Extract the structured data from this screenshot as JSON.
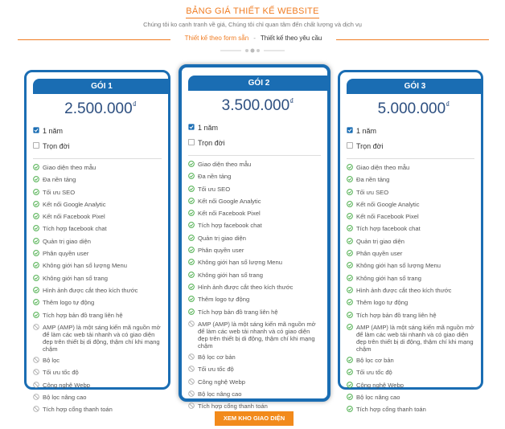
{
  "header": {
    "title": "BẢNG GIÁ THIẾT KẾ WEBSITE",
    "subtitle": "Chúng tôi ko cạnh tranh về giá, Chúng tôi chỉ quan tâm đến chất lượng và dịch vụ",
    "tabs": [
      "Thiết kế theo form sẵn",
      "Thiết kế theo yêu cầu"
    ]
  },
  "plans": [
    {
      "name": "GÓI 1",
      "price": "2.500.000",
      "currency": "₫",
      "options": [
        {
          "label": "1 năm",
          "checked": true
        },
        {
          "label": "Trọn đời",
          "checked": false
        }
      ],
      "features": [
        {
          "text": "Giao diện theo mẫu",
          "included": true
        },
        {
          "text": "Đa nền tảng",
          "included": true
        },
        {
          "text": "Tối ưu SEO",
          "included": true
        },
        {
          "text": "Kết nối Google Analytic",
          "included": true
        },
        {
          "text": "Kết nối Facebook Pixel",
          "included": true
        },
        {
          "text": "Tích hợp facebook chat",
          "included": true
        },
        {
          "text": "Quản trị giao diện",
          "included": true
        },
        {
          "text": "Phân quyền user",
          "included": true
        },
        {
          "text": "Không giới hạn số lượng Menu",
          "included": true
        },
        {
          "text": "Không giới hạn số trang",
          "included": true
        },
        {
          "text": "Hình ảnh được cắt theo kích thước",
          "included": true
        },
        {
          "text": "Thêm logo tự động",
          "included": true
        },
        {
          "text": "Tích hợp bản đồ trang liên hệ",
          "included": true
        },
        {
          "text": "AMP (AMP) là một sáng kiến mã nguồn mở để làm các web tải nhanh và có giao diện đẹp trên thiết bị di động, thậm chí khi mạng chậm",
          "included": false
        },
        {
          "text": "Bộ lọc",
          "included": false
        },
        {
          "text": "Tối ưu tốc độ",
          "included": false
        },
        {
          "text": "Công nghệ Webp",
          "included": false
        },
        {
          "text": "Bộ lọc nâng cao",
          "included": false
        },
        {
          "text": "Tích hợp cổng thanh toán",
          "included": false
        }
      ]
    },
    {
      "name": "GÓI 2",
      "price": "3.500.000",
      "currency": "₫",
      "options": [
        {
          "label": "1 năm",
          "checked": true
        },
        {
          "label": "Trọn đời",
          "checked": false
        }
      ],
      "features": [
        {
          "text": "Giao diện theo mẫu",
          "included": true
        },
        {
          "text": "Đa nền tảng",
          "included": true
        },
        {
          "text": "Tối ưu SEO",
          "included": true
        },
        {
          "text": "Kết nối Google Analytic",
          "included": true
        },
        {
          "text": "Kết nối Facebook Pixel",
          "included": true
        },
        {
          "text": "Tích hợp facebook chat",
          "included": true
        },
        {
          "text": "Quản trị giao diện",
          "included": true
        },
        {
          "text": "Phân quyền user",
          "included": true
        },
        {
          "text": "Không giới hạn số lượng Menu",
          "included": true
        },
        {
          "text": "Không giới hạn số trang",
          "included": true
        },
        {
          "text": "Hình ảnh được cắt theo kích thước",
          "included": true
        },
        {
          "text": "Thêm logo tự động",
          "included": true
        },
        {
          "text": "Tích hợp bản đồ trang liên hệ",
          "included": true
        },
        {
          "text": "AMP (AMP) là một sáng kiến mã nguồn mở để làm các web tải nhanh và có giao diện đẹp trên thiết bị di động, thậm chí khi mạng chậm",
          "included": false
        },
        {
          "text": "Bộ lọc cơ bản",
          "included": false
        },
        {
          "text": "Tối ưu tốc độ",
          "included": false
        },
        {
          "text": "Công nghệ Webp",
          "included": false
        },
        {
          "text": "Bộ lọc nâng cao",
          "included": false
        },
        {
          "text": "Tích hợp cổng thanh toán",
          "included": false
        }
      ]
    },
    {
      "name": "GÓI 3",
      "price": "5.000.000",
      "currency": "₫",
      "options": [
        {
          "label": "1 năm",
          "checked": true
        },
        {
          "label": "Trọn đời",
          "checked": false
        }
      ],
      "features": [
        {
          "text": "Giao diện theo mẫu",
          "included": true
        },
        {
          "text": "Đa nền tảng",
          "included": true
        },
        {
          "text": "Tối ưu SEO",
          "included": true
        },
        {
          "text": "Kết nối Google Analytic",
          "included": true
        },
        {
          "text": "Kết nối Facebook Pixel",
          "included": true
        },
        {
          "text": "Tích hợp facebook chat",
          "included": true
        },
        {
          "text": "Quản trị giao diện",
          "included": true
        },
        {
          "text": "Phân quyền user",
          "included": true
        },
        {
          "text": "Không giới hạn số lượng Menu",
          "included": true
        },
        {
          "text": "Không giới hạn số trang",
          "included": true
        },
        {
          "text": "Hình ảnh được cắt theo kích thước",
          "included": true
        },
        {
          "text": "Thêm logo tự động",
          "included": true
        },
        {
          "text": "Tích hợp bản đồ trang liên hệ",
          "included": true
        },
        {
          "text": "AMP (AMP) là một sáng kiến mã nguồn mở để làm các web tải nhanh và có giao diện đẹp trên thiết bị di động, thậm chí khi mạng chậm",
          "included": true
        },
        {
          "text": "Bộ lọc cơ bản",
          "included": true
        },
        {
          "text": "Tối ưu tốc độ",
          "included": true
        },
        {
          "text": "Công nghệ Webp",
          "included": true
        },
        {
          "text": "Bộ lọc nâng cao",
          "included": true
        },
        {
          "text": "Tích hợp cổng thanh toán",
          "included": true
        }
      ]
    }
  ],
  "button": "XEM KHO GIAO DIỆN"
}
